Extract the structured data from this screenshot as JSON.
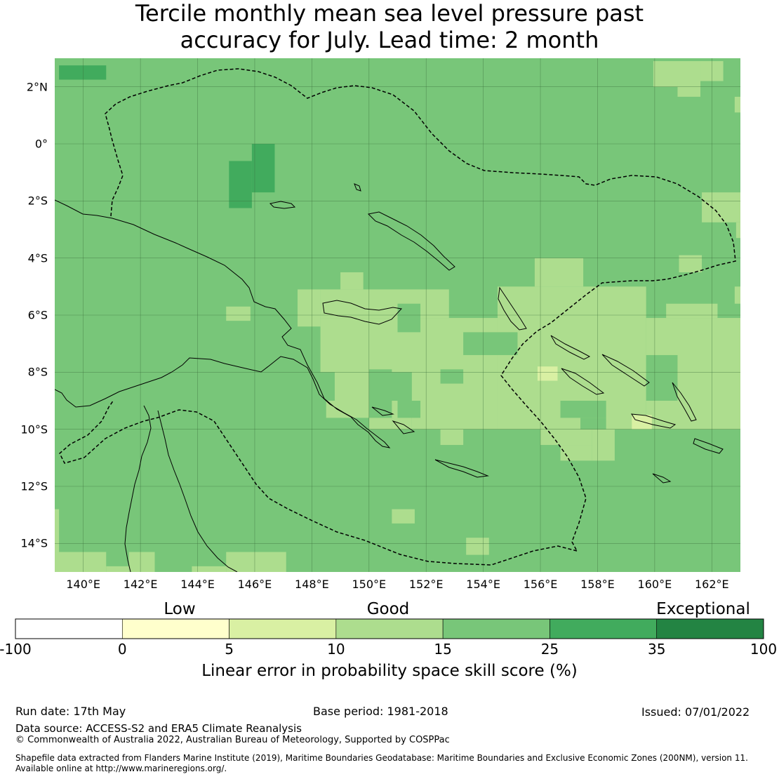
{
  "title": {
    "line1": "Tercile monthly mean sea level pressure past",
    "line2": "accuracy for July. Lead time: 2 month"
  },
  "map": {
    "lat_labels": [
      "2°N",
      "0°",
      "2°S",
      "4°S",
      "6°S",
      "8°S",
      "10°S",
      "12°S",
      "14°S"
    ],
    "lon_labels": [
      "140°E",
      "142°E",
      "144°E",
      "146°E",
      "148°E",
      "150°E",
      "152°E",
      "154°E",
      "156°E",
      "158°E",
      "160°E",
      "162°E"
    ],
    "base_color": "#78c679",
    "cells": [
      {
        "lon": [
          139.15,
          140.8
        ],
        "lat": [
          2.25,
          2.75
        ],
        "cls": "25-35"
      },
      {
        "lon": [
          145.1,
          145.9
        ],
        "lat": [
          -2.25,
          -0.6
        ],
        "cls": "25-35"
      },
      {
        "lon": [
          145.9,
          146.7
        ],
        "lat": [
          -1.7,
          0.0
        ],
        "cls": "25-35"
      },
      {
        "lon": [
          159.95,
          161.6
        ],
        "lat": [
          2.0,
          2.9
        ],
        "cls": "10-15"
      },
      {
        "lon": [
          161.6,
          162.4
        ],
        "lat": [
          2.2,
          2.9
        ],
        "cls": "10-15"
      },
      {
        "lon": [
          160.8,
          161.6
        ],
        "lat": [
          1.65,
          2.2
        ],
        "cls": "10-15"
      },
      {
        "lon": [
          162.8,
          163.0
        ],
        "lat": [
          1.1,
          1.65
        ],
        "cls": "10-15"
      },
      {
        "lon": [
          161.65,
          163.0
        ],
        "lat": [
          -2.75,
          -1.7
        ],
        "cls": "10-15"
      },
      {
        "lon": [
          162.85,
          163.0
        ],
        "lat": [
          -3.3,
          -2.75
        ],
        "cls": "10-15"
      },
      {
        "lon": [
          160.85,
          161.65
        ],
        "lat": [
          -4.5,
          -3.9
        ],
        "cls": "10-15"
      },
      {
        "lon": [
          155.8,
          157.5
        ],
        "lat": [
          -5.0,
          -4.0
        ],
        "cls": "10-15"
      },
      {
        "lon": [
          149.0,
          149.8
        ],
        "lat": [
          -5.1,
          -4.5
        ],
        "cls": "10-15"
      },
      {
        "lon": [
          147.5,
          148.3
        ],
        "lat": [
          -6.4,
          -5.1
        ],
        "cls": "10-15"
      },
      {
        "lon": [
          148.3,
          152.8
        ],
        "lat": [
          -6.1,
          -5.1
        ],
        "cls": "10-15"
      },
      {
        "lon": [
          148.3,
          154.5
        ],
        "lat": [
          -8.0,
          -6.1
        ],
        "cls": "10-15"
      },
      {
        "lon": [
          154.5,
          159.7
        ],
        "lat": [
          -7.5,
          -5.0
        ],
        "cls": "10-15"
      },
      {
        "lon": [
          159.7,
          163.0
        ],
        "lat": [
          -10.0,
          -6.1
        ],
        "cls": "10-15"
      },
      {
        "lon": [
          160.4,
          162.2
        ],
        "lat": [
          -6.1,
          -5.6
        ],
        "cls": "10-15"
      },
      {
        "lon": [
          162.8,
          163.0
        ],
        "lat": [
          -5.6,
          -5.0
        ],
        "cls": "10-15"
      },
      {
        "lon": [
          154.5,
          159.7
        ],
        "lat": [
          -10.0,
          -7.5
        ],
        "cls": "10-15"
      },
      {
        "lon": [
          151.5,
          154.5
        ],
        "lat": [
          -10.0,
          -8.0
        ],
        "cls": "10-15"
      },
      {
        "lon": [
          148.8,
          150.0
        ],
        "lat": [
          -9.0,
          -8.0
        ],
        "cls": "10-15"
      },
      {
        "lon": [
          148.5,
          150.0
        ],
        "lat": [
          -9.6,
          -9.0
        ],
        "cls": "10-15"
      },
      {
        "lon": [
          150.0,
          150.8
        ],
        "lat": [
          -10.0,
          -9.6
        ],
        "cls": "10-15"
      },
      {
        "lon": [
          150.8,
          151.5
        ],
        "lat": [
          -10.0,
          -9.0
        ],
        "cls": "10-15"
      },
      {
        "lon": [
          152.5,
          153.3
        ],
        "lat": [
          -10.55,
          -10.0
        ],
        "cls": "10-15"
      },
      {
        "lon": [
          156.0,
          157.8
        ],
        "lat": [
          -10.55,
          -10.0
        ],
        "cls": "10-15"
      },
      {
        "lon": [
          157.8,
          158.6
        ],
        "lat": [
          -11.1,
          -10.0
        ],
        "cls": "10-15"
      },
      {
        "lon": [
          156.7,
          157.8
        ],
        "lat": [
          -11.1,
          -10.55
        ],
        "cls": "10-15"
      },
      {
        "lon": [
          145.0,
          147.1
        ],
        "lat": [
          -15.0,
          -14.3
        ],
        "cls": "10-15"
      },
      {
        "lon": [
          139.0,
          140.8
        ],
        "lat": [
          -15.0,
          -14.3
        ],
        "cls": "10-15"
      },
      {
        "lon": [
          139.0,
          139.15
        ],
        "lat": [
          -14.3,
          -12.8
        ],
        "cls": "10-15"
      },
      {
        "lon": [
          140.8,
          141.6
        ],
        "lat": [
          -15.0,
          -14.8
        ],
        "cls": "10-15"
      },
      {
        "lon": [
          141.6,
          142.5
        ],
        "lat": [
          -15.0,
          -14.3
        ],
        "cls": "10-15"
      },
      {
        "lon": [
          143.8,
          145.0
        ],
        "lat": [
          -15.0,
          -14.8
        ],
        "cls": "10-15"
      },
      {
        "lon": [
          145.0,
          145.85
        ],
        "lat": [
          -6.2,
          -5.7
        ],
        "cls": "10-15"
      },
      {
        "lon": [
          150.8,
          151.6
        ],
        "lat": [
          -13.3,
          -12.8
        ],
        "cls": "10-15"
      },
      {
        "lon": [
          153.4,
          154.2
        ],
        "lat": [
          -14.4,
          -13.8
        ],
        "cls": "10-15"
      },
      {
        "lon": [
          150.0,
          150.8
        ],
        "lat": [
          -9.0,
          -7.9
        ],
        "cls": "15-25"
      },
      {
        "lon": [
          151.0,
          151.8
        ],
        "lat": [
          -9.6,
          -9.0
        ],
        "cls": "15-25"
      },
      {
        "lon": [
          151.0,
          151.8
        ],
        "lat": [
          -6.6,
          -5.6
        ],
        "cls": "15-25"
      },
      {
        "lon": [
          152.5,
          153.3
        ],
        "lat": [
          -8.4,
          -7.9
        ],
        "cls": "15-25"
      },
      {
        "lon": [
          153.3,
          155.2
        ],
        "lat": [
          -7.4,
          -6.6
        ],
        "cls": "15-25"
      },
      {
        "lon": [
          159.7,
          160.8
        ],
        "lat": [
          -9.0,
          -7.4
        ],
        "cls": "15-25"
      },
      {
        "lon": [
          156.7,
          158.3
        ],
        "lat": [
          -9.6,
          -9.0
        ],
        "cls": "15-25"
      },
      {
        "lon": [
          157.4,
          158.3
        ],
        "lat": [
          -10.0,
          -9.6
        ],
        "cls": "15-25"
      },
      {
        "lon": [
          155.9,
          156.6
        ],
        "lat": [
          -8.3,
          -7.8
        ],
        "cls": "5-10"
      },
      {
        "lon": [
          159.2,
          159.9
        ],
        "lat": [
          -10.0,
          -9.5
        ],
        "cls": "5-10"
      }
    ],
    "labels": {
      "cb_low": "Low",
      "cb_good": "Good",
      "cb_exceptional": "Exceptional"
    }
  },
  "colorbar": {
    "categories": [
      {
        "from": -100,
        "to": 0,
        "color": "#ffffff"
      },
      {
        "from": 0,
        "to": 5,
        "color": "#ffffcc"
      },
      {
        "from": 5,
        "to": 10,
        "color": "#d9f0a3"
      },
      {
        "from": 10,
        "to": 15,
        "color": "#addd8e"
      },
      {
        "from": 15,
        "to": 25,
        "color": "#78c679"
      },
      {
        "from": 25,
        "to": 35,
        "color": "#41ab5d"
      },
      {
        "from": 35,
        "to": 100,
        "color": "#238443"
      }
    ],
    "ticks": [
      "-100",
      "0",
      "5",
      "10",
      "15",
      "25",
      "35",
      "100"
    ],
    "label": "Linear error in probability space skill score (%)"
  },
  "footer": {
    "run_date": "Run date: 17th May",
    "base_period": "Base period: 1981-2018",
    "issued": "Issued: 07/01/2022",
    "data_source": "Data source: ACCESS-S2 and ERA5 Climate Reanalysis",
    "copyright": "© Commonwealth of Australia 2022, Australian Bureau of Meteorology, Supported by COSPPac",
    "shapefile_line1": "Shapefile data extracted from Flanders Marine Institute (2019), Maritime Boundaries Geodatabase: Maritime Boundaries and Exclusive Economic Zones (200NM), version 11.",
    "shapefile_line2": "Available online at http://www.marineregions.org/."
  }
}
